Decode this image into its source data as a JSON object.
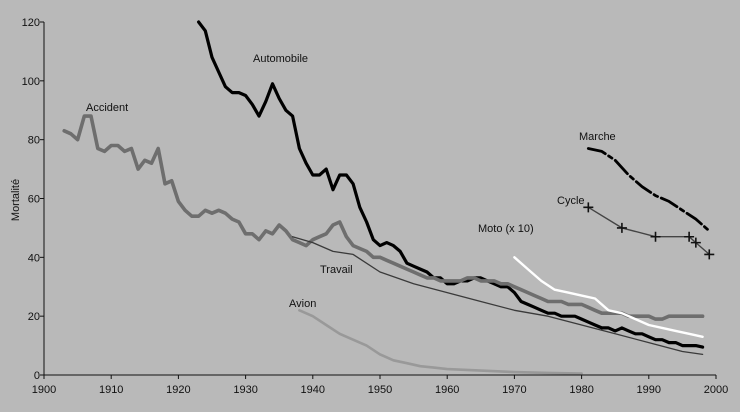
{
  "chart_data": {
    "type": "line",
    "title": "",
    "xlabel": "",
    "ylabel": "Mortalité",
    "xlim": [
      1900,
      2000
    ],
    "ylim": [
      0,
      120
    ],
    "xticks": [
      1900,
      1910,
      1920,
      1930,
      1940,
      1950,
      1960,
      1970,
      1980,
      1990,
      2000
    ],
    "yticks": [
      0,
      20,
      40,
      60,
      80,
      100,
      120
    ],
    "grid": false,
    "series": [
      {
        "name": "Automobile",
        "color": "#000000",
        "x": [
          1923,
          1924,
          1925,
          1926,
          1927,
          1928,
          1929,
          1930,
          1931,
          1932,
          1933,
          1934,
          1935,
          1936,
          1937,
          1938,
          1939,
          1940,
          1941,
          1942,
          1943,
          1944,
          1945,
          1946,
          1947,
          1948,
          1949,
          1950,
          1951,
          1952,
          1953,
          1954,
          1955,
          1956,
          1957,
          1958,
          1959,
          1960,
          1961,
          1962,
          1963,
          1964,
          1965,
          1966,
          1967,
          1968,
          1969,
          1970,
          1971,
          1972,
          1973,
          1974,
          1975,
          1976,
          1977,
          1978,
          1979,
          1980,
          1981,
          1982,
          1983,
          1984,
          1985,
          1986,
          1987,
          1988,
          1989,
          1990,
          1991,
          1992,
          1993,
          1994,
          1995,
          1996,
          1997,
          1998
        ],
        "values": [
          120,
          117,
          108,
          103,
          98,
          96,
          96,
          95,
          92,
          88,
          93,
          99,
          94,
          90,
          88,
          77,
          72,
          68,
          68,
          70,
          63,
          68,
          68,
          65,
          57,
          52,
          46,
          44,
          45,
          44,
          42,
          38,
          37,
          36,
          35,
          33,
          33,
          31,
          31,
          32,
          32,
          33,
          33,
          32,
          31,
          30,
          30,
          28,
          25,
          24,
          23,
          22,
          21,
          21,
          20,
          20,
          20,
          19,
          18,
          17,
          16,
          16,
          15,
          16,
          15,
          14,
          14,
          13,
          12,
          12,
          11,
          11,
          10,
          10,
          10,
          9.5
        ]
      },
      {
        "name": "Accident",
        "color": "#6e6e6e",
        "x": [
          1903,
          1904,
          1905,
          1906,
          1907,
          1908,
          1909,
          1910,
          1911,
          1912,
          1913,
          1914,
          1915,
          1916,
          1917,
          1918,
          1919,
          1920,
          1921,
          1922,
          1923,
          1924,
          1925,
          1926,
          1927,
          1928,
          1929,
          1930,
          1931,
          1932,
          1933,
          1934,
          1935,
          1936,
          1937,
          1938,
          1939,
          1940,
          1941,
          1942,
          1943,
          1944,
          1945,
          1946,
          1947,
          1948,
          1949,
          1950,
          1951,
          1952,
          1953,
          1954,
          1955,
          1956,
          1957,
          1958,
          1959,
          1960,
          1961,
          1962,
          1963,
          1964,
          1965,
          1966,
          1967,
          1968,
          1969,
          1970,
          1971,
          1972,
          1973,
          1974,
          1975,
          1976,
          1977,
          1978,
          1979,
          1980,
          1981,
          1982,
          1983,
          1984,
          1985,
          1986,
          1987,
          1988,
          1989,
          1990,
          1991,
          1992,
          1993,
          1994,
          1995,
          1996,
          1997,
          1998
        ],
        "values": [
          83,
          82,
          80,
          88,
          88,
          77,
          76,
          78,
          78,
          76,
          77,
          70,
          73,
          72,
          77,
          65,
          66,
          59,
          56,
          54,
          54,
          56,
          55,
          56,
          55,
          53,
          52,
          48,
          48,
          46,
          49,
          48,
          51,
          49,
          46,
          45,
          44,
          46,
          47,
          48,
          51,
          52,
          47,
          44,
          43,
          42,
          40,
          40,
          39,
          38,
          37,
          36,
          35,
          34,
          33,
          33,
          32,
          32,
          32,
          32,
          33,
          33,
          32,
          32,
          32,
          31,
          31,
          30,
          29,
          28,
          27,
          26,
          25,
          25,
          25,
          24,
          24,
          24,
          23,
          22,
          21,
          21,
          21,
          21,
          20,
          20,
          20,
          20,
          19,
          19,
          20,
          20,
          20,
          20,
          20,
          20
        ]
      },
      {
        "name": "Travail",
        "color": "#3a3a3a",
        "x": [
          1937,
          1940,
          1943,
          1946,
          1950,
          1955,
          1960,
          1965,
          1970,
          1975,
          1980,
          1985,
          1990,
          1995,
          1998
        ],
        "values": [
          47,
          45,
          42,
          41,
          35,
          31,
          28,
          25,
          22,
          20,
          17,
          14,
          11,
          8,
          7
        ]
      },
      {
        "name": "Avion",
        "color": "#999999",
        "x": [
          1938,
          1940,
          1942,
          1944,
          1946,
          1948,
          1950,
          1952,
          1954,
          1956,
          1958,
          1960,
          1965,
          1970,
          1975,
          1980
        ],
        "values": [
          22,
          20,
          17,
          14,
          12,
          10,
          7,
          5,
          4,
          3,
          2.5,
          2,
          1.5,
          1,
          0.7,
          0.5
        ]
      },
      {
        "name": "Moto (x 10)",
        "color": "#ffffff",
        "x": [
          1970,
          1972,
          1974,
          1976,
          1978,
          1980,
          1982,
          1984,
          1986,
          1988,
          1990,
          1992,
          1994,
          1996,
          1998
        ],
        "values": [
          40,
          36,
          32,
          29,
          28,
          27,
          26,
          22,
          21,
          19,
          17,
          16,
          15,
          14,
          13
        ]
      },
      {
        "name": "Marche",
        "color": "#000000",
        "x": [
          1981,
          1983,
          1985,
          1987,
          1989,
          1991,
          1993,
          1995,
          1997,
          1999
        ],
        "values": [
          77,
          76,
          73,
          68,
          64,
          61,
          59,
          56,
          53,
          49
        ]
      },
      {
        "name": "Cycle",
        "color": "#444444",
        "x": [
          1981,
          1986,
          1991,
          1996,
          1997,
          1999
        ],
        "values": [
          57,
          50,
          47,
          47,
          45,
          41
        ]
      }
    ]
  }
}
